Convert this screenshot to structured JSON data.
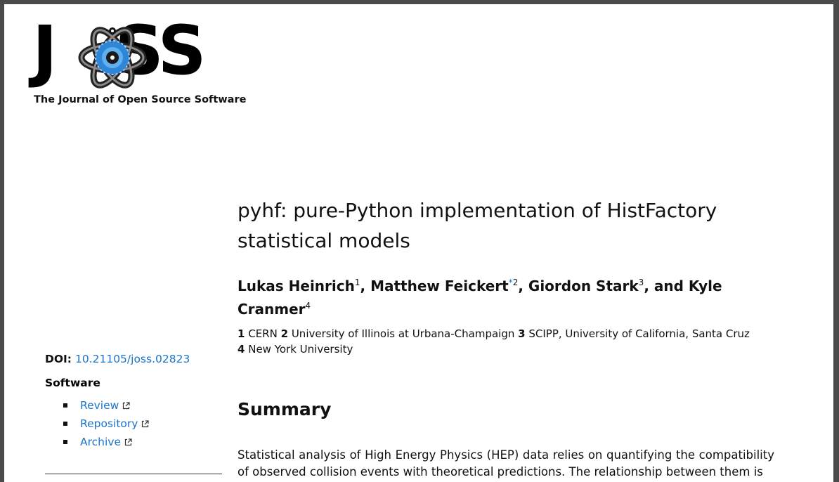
{
  "logo": {
    "left_letter": "J",
    "right_letters": "SS",
    "subtitle": "The Journal of Open Source Software"
  },
  "paper": {
    "title": "pyhf: pure-Python implementation of HistFactory statistical models",
    "authors": [
      {
        "name": "Lukas Heinrich",
        "aff": "1"
      },
      {
        "name": "Matthew Feickert",
        "aff": "2",
        "mark": "*"
      },
      {
        "name": "Giordon Stark",
        "aff": "3"
      },
      {
        "name": "Kyle Cranmer",
        "aff": "4"
      }
    ],
    "author_sep": ", ",
    "author_last_sep": ", and ",
    "affiliations": [
      {
        "num": "1",
        "name": "CERN"
      },
      {
        "num": "2",
        "name": "University of Illinois at Urbana-Champaign"
      },
      {
        "num": "3",
        "name": "SCIPP, University of California, Santa Cruz"
      },
      {
        "num": "4",
        "name": "New York University"
      }
    ]
  },
  "sidebar": {
    "doi_label": "DOI:",
    "doi_value": "10.21105/joss.02823",
    "software_heading": "Software",
    "links": [
      "Review",
      "Repository",
      "Archive"
    ]
  },
  "summary": {
    "heading": "Summary",
    "text": "Statistical analysis of High Energy Physics (HEP) data relies on quantifying the compatibility of observed collision events with theoretical predictions. The relationship between them is"
  },
  "colors": {
    "link": "#1a74c9",
    "frame": "#4a4a4a"
  }
}
